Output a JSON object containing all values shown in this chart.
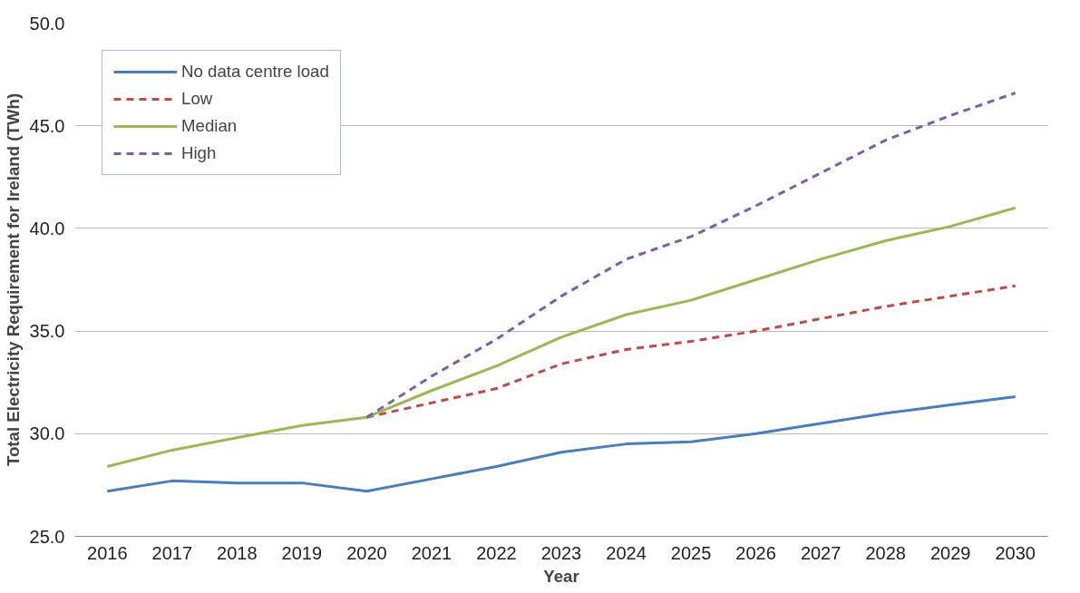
{
  "chart_data": {
    "type": "line",
    "xlabel": "Year",
    "ylabel": "Total Electricity Requirement for Ireland (TWh)",
    "categories": [
      "2016",
      "2017",
      "2018",
      "2019",
      "2020",
      "2021",
      "2022",
      "2023",
      "2024",
      "2025",
      "2026",
      "2027",
      "2028",
      "2029",
      "2030"
    ],
    "series": [
      {
        "name": "No data centre load",
        "color": "#4a7ebb",
        "line_style": "solid",
        "values": [
          27.2,
          27.7,
          27.6,
          27.6,
          27.2,
          27.8,
          28.4,
          29.1,
          29.5,
          29.6,
          30.0,
          30.5,
          31.0,
          31.4,
          31.8
        ]
      },
      {
        "name": "Low",
        "color": "#be4b48",
        "line_style": "dashed",
        "values": [
          null,
          null,
          null,
          null,
          30.8,
          31.5,
          32.2,
          33.4,
          34.1,
          34.5,
          35.0,
          35.6,
          36.2,
          36.7,
          37.2
        ]
      },
      {
        "name": "Median",
        "color": "#98b954",
        "line_style": "solid",
        "values": [
          28.4,
          29.2,
          29.8,
          30.4,
          30.8,
          32.1,
          33.3,
          34.7,
          35.8,
          36.5,
          37.5,
          38.5,
          39.4,
          40.1,
          41.0
        ]
      },
      {
        "name": "High",
        "color": "#7d60a0",
        "line_style": "dashed",
        "values": [
          null,
          null,
          null,
          null,
          30.8,
          32.8,
          34.6,
          36.7,
          38.5,
          39.6,
          41.1,
          42.7,
          44.3,
          45.5,
          46.6
        ]
      }
    ],
    "ylim": [
      25,
      50
    ],
    "yticks": [
      {
        "value": 25,
        "label": "25.0"
      },
      {
        "value": 30,
        "label": "30.0"
      },
      {
        "value": 35,
        "label": "35.0"
      },
      {
        "value": 40,
        "label": "40.0"
      },
      {
        "value": 45,
        "label": "45.0"
      },
      {
        "value": 50,
        "label": "50.0"
      }
    ],
    "grid": "y",
    "legend": "top left",
    "marker": "none"
  }
}
